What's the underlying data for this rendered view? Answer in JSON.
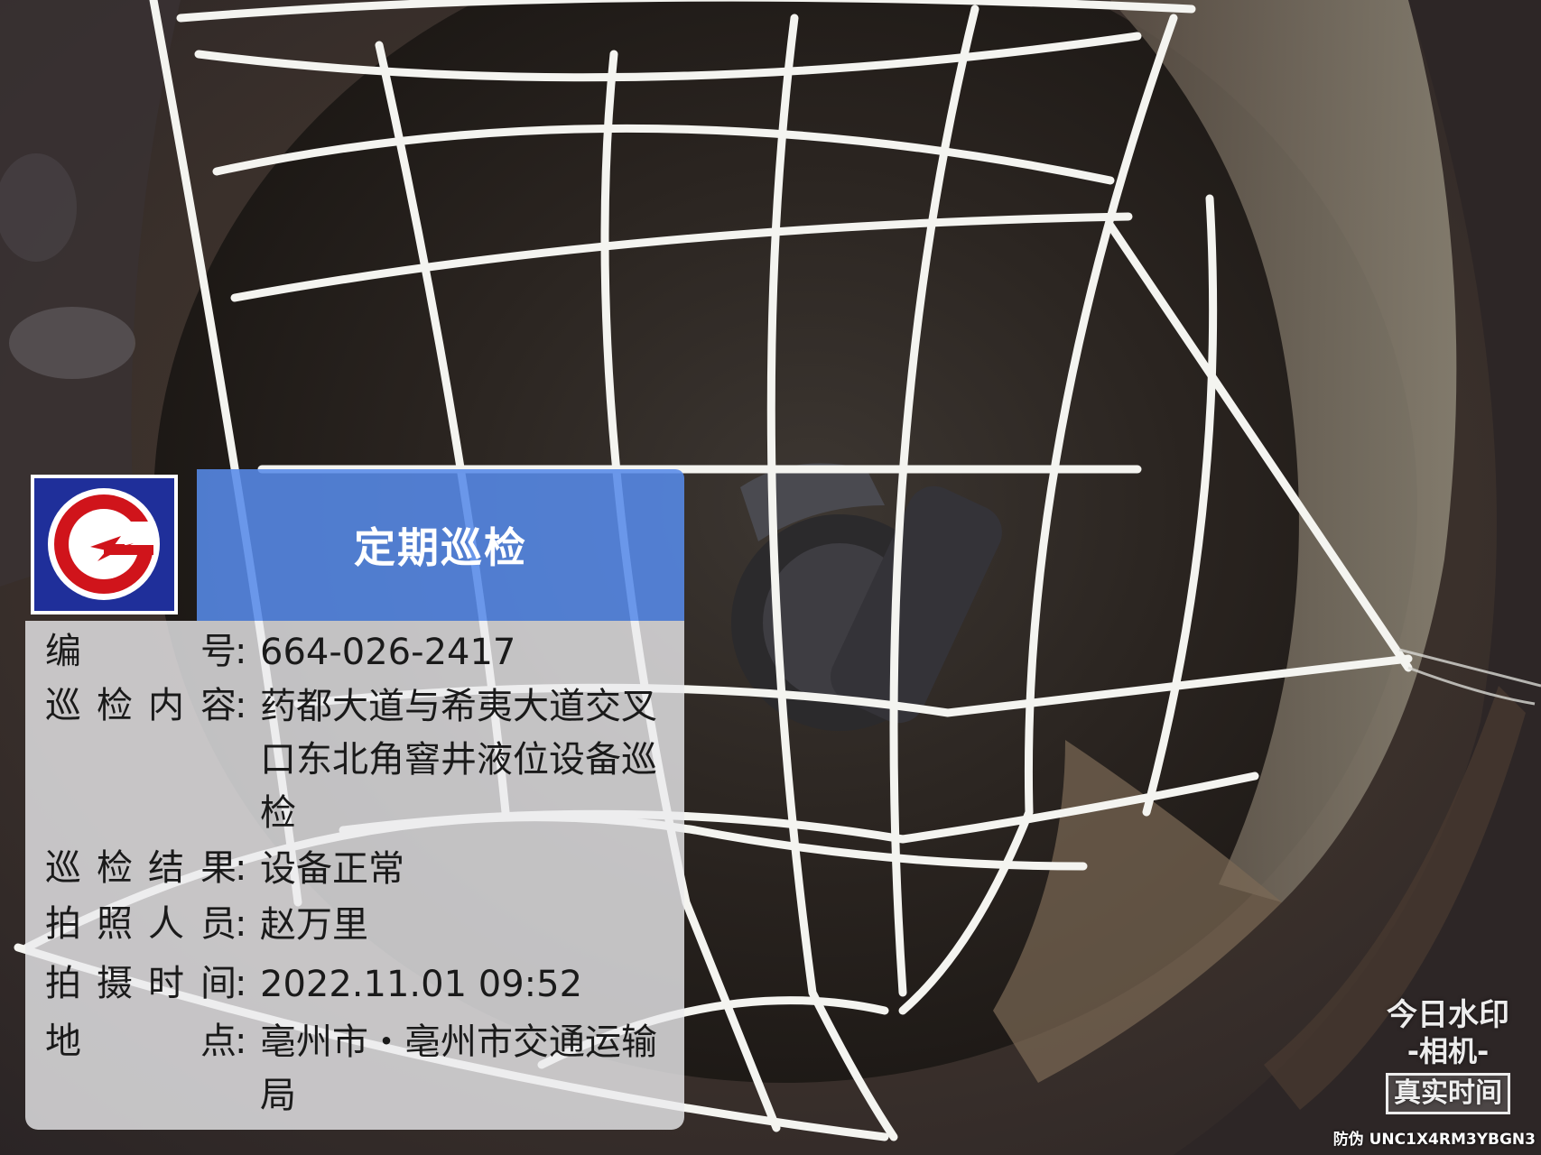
{
  "card": {
    "title": "定期巡检",
    "fields": [
      {
        "label_chars": [
          "编",
          "号"
        ],
        "value": "664-026-2417"
      },
      {
        "label_chars": [
          "巡",
          "检",
          "内",
          "容"
        ],
        "value": "药都大道与希夷大道交叉口东北角窨井液位设备巡检"
      },
      {
        "label_chars": [
          "巡",
          "检",
          "结",
          "果"
        ],
        "value": "设备正常"
      },
      {
        "label_chars": [
          "拍",
          "照",
          "人",
          "员"
        ],
        "value": "赵万里"
      },
      {
        "label_chars": [
          "拍",
          "摄",
          "时",
          "间"
        ],
        "value": "2022.11.01 09:52"
      },
      {
        "label_chars": [
          "地",
          "点"
        ],
        "value": "亳州市・亳州市交通运输局"
      }
    ],
    "colon": ":"
  },
  "brand": {
    "line1": "今日水印",
    "line2": "-相机-",
    "stamp": "真实时间"
  },
  "antifake": "防伪 UNC1X4RM3YBGN3",
  "colors": {
    "header_blue": "#568ae8",
    "logo_blue": "#1f2f9a",
    "logo_red": "#d0141b",
    "net_white": "#f4f4f0"
  }
}
